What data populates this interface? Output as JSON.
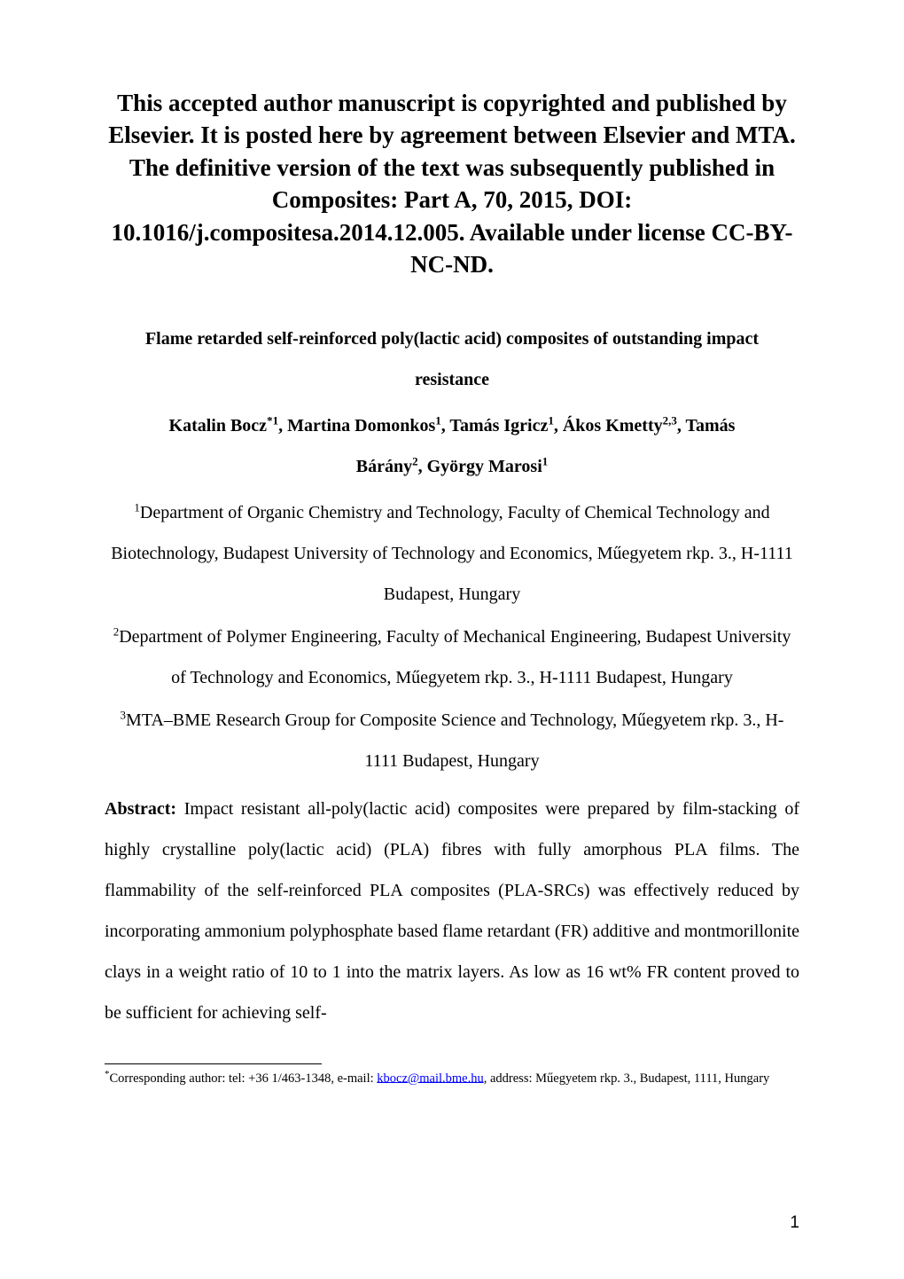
{
  "notice": "This accepted author manuscript is copyrighted and published by Elsevier. It is posted here by agreement between Elsevier and MTA. The definitive version of the text was subsequently published in Composites: Part A, 70, 2015, DOI: 10.1016/j.compositesa.2014.12.005. Available under license CC-BY-NC-ND.",
  "title_line1": "Flame retarded self-reinforced poly(lactic acid) composites of outstanding impact",
  "title_line2": "resistance",
  "authors": {
    "a1_name": "Katalin Bocz",
    "a1_sup": "*1",
    "a2_name": ", Martina Domonkos",
    "a2_sup": "1",
    "a3_name": ", Tamás Igricz",
    "a3_sup": "1",
    "a4_name": ", Ákos Kmetty",
    "a4_sup": "2,3",
    "a5_name": ", Tamás",
    "a6_name": "Bárány",
    "a6_sup": "2",
    "a7_name": ", György Marosi",
    "a7_sup": "1"
  },
  "affil1_sup": "1",
  "affil1": "Department of Organic Chemistry and Technology, Faculty of Chemical Technology and Biotechnology, Budapest University of Technology and Economics, Műegyetem rkp. 3., H-1111 Budapest, Hungary",
  "affil2_sup": "2",
  "affil2": "Department of Polymer Engineering, Faculty of Mechanical Engineering, Budapest University of Technology and Economics, Műegyetem rkp. 3., H-1111 Budapest, Hungary",
  "affil3_sup": "3",
  "affil3": "MTA–BME Research Group for Composite Science and Technology, Műegyetem rkp. 3., H-1111 Budapest, Hungary",
  "abstract_label": "Abstract:",
  "abstract_body": " Impact resistant all-poly(lactic acid) composites were prepared by film-stacking of highly crystalline poly(lactic acid) (PLA) fibres with fully amorphous PLA films. The flammability of the self-reinforced PLA composites (PLA-SRCs) was effectively reduced by incorporating ammonium polyphosphate based flame retardant (FR) additive and montmorillonite clays in a weight ratio of 10 to 1 into the matrix layers. As low as 16 wt% FR content proved to be sufficient for achieving self-",
  "footnote_star": "*",
  "footnote_pre": "Corresponding author: tel: +36 1/463-1348, e-mail: ",
  "footnote_mail": "kbocz@mail.bme.hu",
  "footnote_post": ", address: Műegyetem rkp. 3., Budapest, 1111, Hungary",
  "page_number": "1"
}
